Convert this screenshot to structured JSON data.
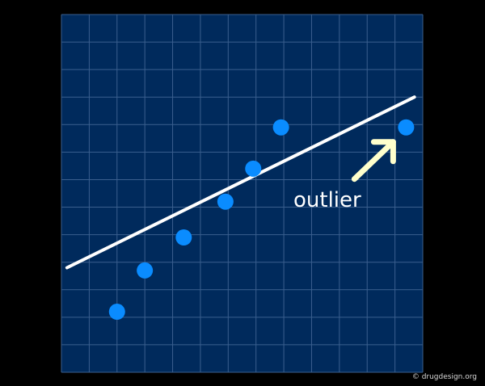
{
  "colors": {
    "background": "#000000",
    "plot_background": "#002a5c",
    "grid": "#3a5f8e",
    "points": "#0a8cff",
    "fit_line": "#ffffff",
    "arrow": "#ffffcc",
    "annotation_text": "#ffffff"
  },
  "annotation": {
    "label": "outlier"
  },
  "credit": {
    "text": "© drugdesign.org"
  },
  "chart_data": {
    "type": "scatter",
    "title": "",
    "xlabel": "",
    "ylabel": "",
    "grid": true,
    "xlim": [
      0,
      13
    ],
    "ylim": [
      0,
      13
    ],
    "points": [
      {
        "x": 2.0,
        "y": 2.2
      },
      {
        "x": 3.0,
        "y": 3.7
      },
      {
        "x": 4.4,
        "y": 4.9
      },
      {
        "x": 5.9,
        "y": 6.2
      },
      {
        "x": 6.9,
        "y": 7.4
      },
      {
        "x": 7.9,
        "y": 8.9
      },
      {
        "x": 12.4,
        "y": 8.9
      }
    ],
    "fit_line": {
      "x": [
        0.2,
        12.7
      ],
      "y": [
        3.8,
        10.0
      ]
    },
    "annotations": [
      {
        "text": "outlier",
        "target_point_index": 6
      }
    ]
  }
}
